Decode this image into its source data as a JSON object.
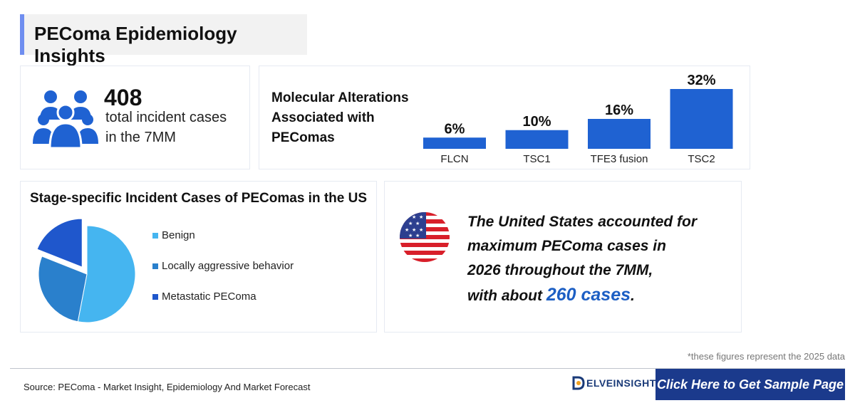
{
  "header": {
    "title": "PEComa Epidemiology Insights"
  },
  "stat_card": {
    "number": "408",
    "line1": "total incident cases",
    "line2": "in the 7MM",
    "icon": "people-group-icon"
  },
  "molecular": {
    "title_lines": [
      "Molecular Alterations",
      "Associated with",
      "PEComas"
    ],
    "chart_data": {
      "type": "bar",
      "categories": [
        "FLCN",
        "TSC1",
        "TFE3 fusion",
        "TSC2"
      ],
      "values": [
        6,
        10,
        16,
        32
      ],
      "value_labels": [
        "6%",
        "10%",
        "16%",
        "32%"
      ],
      "ylim": [
        0,
        32
      ],
      "color": "#1f62d2"
    }
  },
  "stage": {
    "title": "Stage-specific Incident Cases of PEComas in the US",
    "chart_data": {
      "type": "pie",
      "labels": [
        "Benign",
        "Locally aggressive behavior",
        "Metastatic PEComa"
      ],
      "values": [
        53,
        28,
        19
      ],
      "colors": [
        "#45b5f0",
        "#2a80cc",
        "#1f57cc"
      ]
    }
  },
  "us_insight": {
    "line1": "The United States accounted for",
    "line2": "maximum PEComa cases in",
    "line3": "2026 throughout the 7MM,",
    "line4_prefix": "with about ",
    "highlight": "260 cases",
    "line4_suffix": ".",
    "icon": "us-flag-icon"
  },
  "footnote": "*these figures represent the 2025 data",
  "footer": {
    "source": "Source: PEComa - Market Insight, Epidemiology And Market Forecast",
    "logo_text": "ELVEINSIGHT",
    "cta": "Click Here to Get Sample Page"
  }
}
